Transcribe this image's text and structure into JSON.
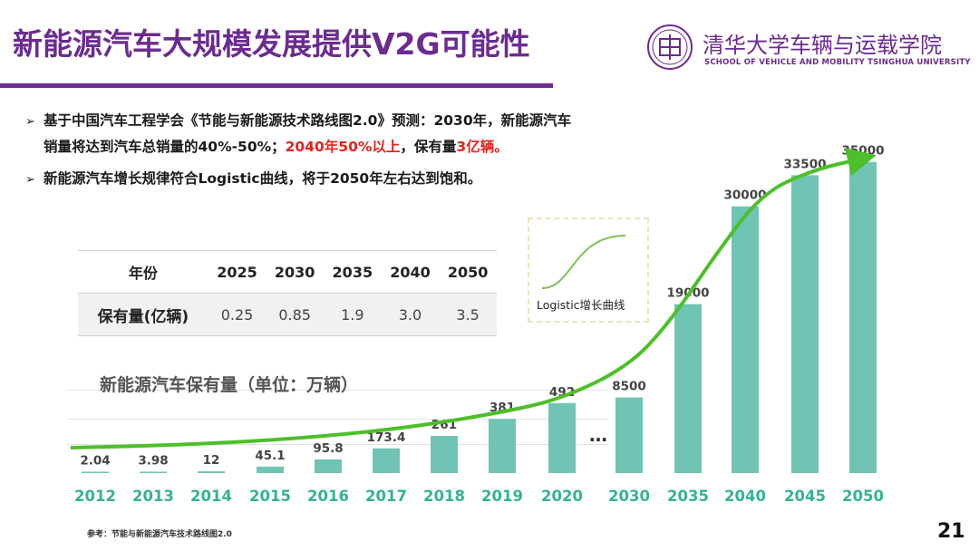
{
  "header": {
    "title": "新能源汽车大规模发展提供V2G可能性",
    "school_cn": "清华大学车辆与运载学院",
    "school_en": "SCHOOL OF VEHICLE AND MOBILITY TSINGHUA UNIVERSITY",
    "logo_icon": "tsinghua-seal-icon"
  },
  "bullets": {
    "b1_line1": "基于中国汽车工程学会《节能与新能源技术路线图2.0》预测：2030年，新能源汽车",
    "b1_line2_a": "销量将达到汽车总销量的40%-50%；",
    "b1_line2_red1": "2040年50%以上",
    "b1_line2_b": "，保有量",
    "b1_line2_red2": "3亿辆。",
    "b2": "新能源汽车增长规律符合Logistic曲线，将于2050年左右达到饱和。",
    "marker": "➢"
  },
  "table": {
    "header_label": "年份",
    "years": [
      "2025",
      "2030",
      "2035",
      "2040",
      "2050"
    ],
    "row_label": "保有量(亿辆)",
    "values": [
      "0.25",
      "0.85",
      "1.9",
      "3.0",
      "3.5"
    ]
  },
  "inset": {
    "label": "Logistic增长曲线"
  },
  "chart_data": {
    "type": "bar",
    "title": "新能源汽车保有量（单位：万辆）",
    "categories": [
      "2012",
      "2013",
      "2014",
      "2015",
      "2016",
      "2017",
      "2018",
      "2019",
      "2020",
      "2030",
      "2035",
      "2040",
      "2045",
      "2050"
    ],
    "values": [
      2.04,
      3.98,
      12,
      45.1,
      95.8,
      173.4,
      261,
      381,
      492,
      8500,
      19000,
      30000,
      33500,
      35000
    ],
    "value_labels": [
      "2.04",
      "3.98",
      "12",
      "45.1",
      "95.8",
      "173.4",
      "261",
      "381",
      "492",
      "8500",
      "19000",
      "30000",
      "33500",
      "35000"
    ],
    "break_marker": "…",
    "bar_color": "#6fc4b4",
    "trend_color": "#4dbf2a",
    "xlabel_color": "#35b394",
    "note": "axis is broken between 2020 and 2030; bars are not to a single linear scale"
  },
  "footer": {
    "reference": "参考：节能与新能源汽车技术路线图2.0",
    "page_number": "21"
  },
  "colors": {
    "brand": "#6b2c91",
    "accent_red": "#e8221b"
  }
}
